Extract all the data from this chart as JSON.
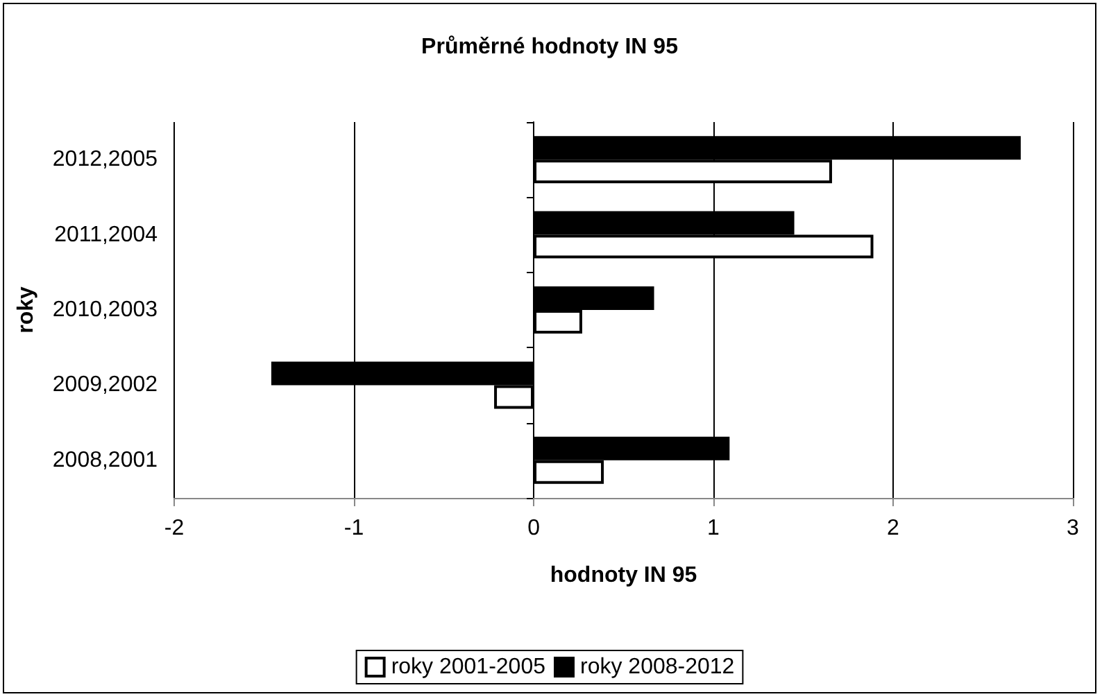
{
  "chart_data": {
    "type": "bar",
    "orientation": "horizontal",
    "title": "Průměrné hodnoty IN 95",
    "xlabel": "hodnoty IN 95",
    "ylabel": "roky",
    "categories": [
      "2012,2005",
      "2011,2004",
      "2010,2003",
      "2009,2002",
      "2008,2001"
    ],
    "series": [
      {
        "name": "roky 2001-2005",
        "color": "#ffffff",
        "values": [
          1.66,
          1.89,
          0.27,
          -0.22,
          0.39
        ]
      },
      {
        "name": "roky 2008-2012",
        "color": "#000000",
        "values": [
          2.71,
          1.45,
          0.67,
          -1.46,
          1.09
        ]
      }
    ],
    "xlim": [
      -2,
      3
    ],
    "xticks": [
      -2,
      -1,
      0,
      1,
      2,
      3
    ],
    "grid": "x",
    "legend": "bottom"
  }
}
